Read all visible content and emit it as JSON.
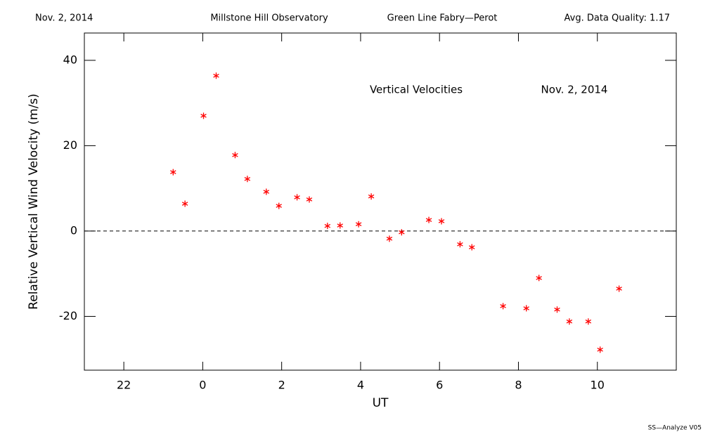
{
  "chart_data": {
    "type": "scatter",
    "header": [
      "Nov. 2, 2014",
      "Millstone Hill Observatory",
      "Green Line Fabry—Perot",
      "Avg. Data Quality: 1.17"
    ],
    "annotations": [
      "Vertical Velocities",
      "Nov. 2, 2014"
    ],
    "footer": "SS—Analyze V05",
    "xlabel": "UT",
    "ylabel": "Relative Vertical Wind Velocity (m/s)",
    "xlim": [
      -3,
      12
    ],
    "ylim": [
      -32.6,
      46.4
    ],
    "xticks": [
      {
        "value": -2,
        "label": "22"
      },
      0,
      2,
      4,
      6,
      8,
      10
    ],
    "yticks": [
      -20,
      0,
      20,
      40
    ],
    "hline": 0,
    "color": "#ff0000",
    "x": [
      -0.75,
      -0.45,
      0.02,
      0.34,
      0.82,
      1.13,
      1.61,
      1.93,
      2.39,
      2.7,
      3.16,
      3.48,
      3.95,
      4.27,
      4.73,
      5.04,
      5.73,
      6.05,
      6.52,
      6.82,
      7.61,
      8.2,
      8.52,
      8.98,
      9.29,
      9.77,
      10.07,
      10.55
    ],
    "values": [
      13.8,
      6.4,
      27.0,
      36.4,
      17.8,
      12.2,
      9.2,
      5.9,
      7.9,
      7.4,
      1.2,
      1.3,
      1.6,
      8.1,
      -1.8,
      -0.3,
      2.6,
      2.3,
      -3.1,
      -3.8,
      -17.6,
      -18.1,
      -11.0,
      -18.4,
      -21.2,
      -21.2,
      -27.8,
      -13.5
    ]
  }
}
